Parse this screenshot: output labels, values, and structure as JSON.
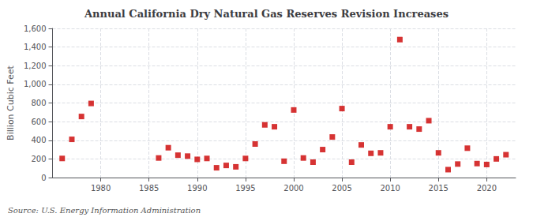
{
  "chart_data": {
    "type": "scatter",
    "title": "Annual California Dry Natural Gas Reserves Revision Increases",
    "ylabel": "Billion Cubic Feet",
    "annotations": [
      "Source: U.S. Energy Information Administration"
    ],
    "x": [
      1976,
      1977,
      1978,
      1979,
      1986,
      1987,
      1988,
      1989,
      1990,
      1991,
      1992,
      1993,
      1994,
      1995,
      1996,
      1997,
      1998,
      1999,
      2000,
      2001,
      2002,
      2003,
      2004,
      2005,
      2006,
      2007,
      2008,
      2009,
      2010,
      2011,
      2012,
      2013,
      2014,
      2015,
      2016,
      2017,
      2018,
      2019,
      2020,
      2021,
      2022
    ],
    "values": [
      205,
      410,
      655,
      795,
      210,
      320,
      240,
      230,
      195,
      205,
      105,
      130,
      115,
      205,
      360,
      565,
      545,
      175,
      725,
      210,
      165,
      300,
      435,
      740,
      165,
      350,
      260,
      265,
      545,
      1480,
      545,
      520,
      610,
      265,
      85,
      145,
      315,
      150,
      140,
      200,
      245
    ],
    "color": "#cc0000",
    "marker": "square",
    "xlim": [
      1975,
      2023
    ],
    "xticks": [
      1980,
      1985,
      1990,
      1995,
      2000,
      2005,
      2010,
      2015,
      2020
    ],
    "ylim": [
      0,
      1600
    ],
    "yticks": [
      0,
      200,
      400,
      600,
      800,
      {
        "value": 1000,
        "label": "1,000"
      },
      {
        "value": 1200,
        "label": "1,200"
      },
      {
        "value": 1400,
        "label": "1,400"
      },
      {
        "value": 1600,
        "label": "1,600"
      }
    ],
    "grid": true
  }
}
